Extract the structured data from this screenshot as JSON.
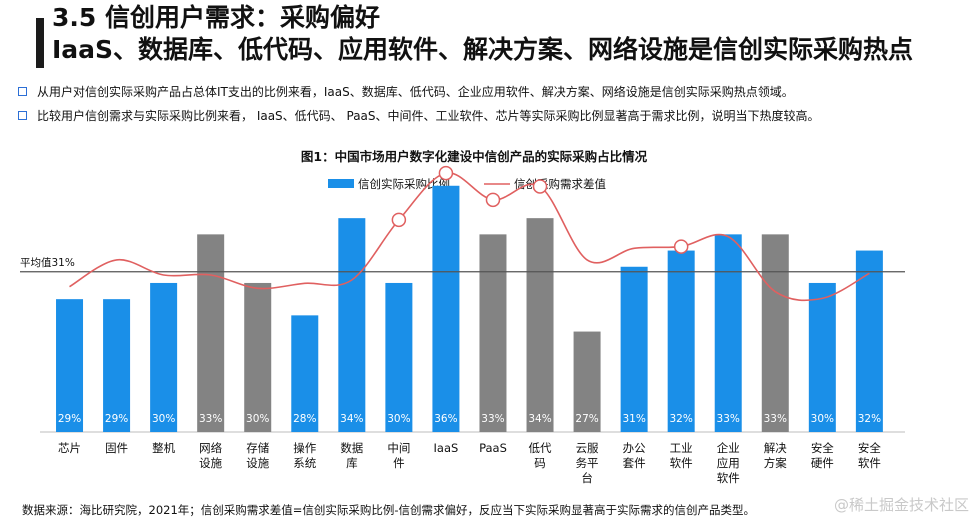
{
  "slide": {
    "section_title": "3.5 信创用户需求：采购偏好",
    "headline": "IaaS、数据库、低代码、应用软件、解决方案、网络设施是信创实际采购热点",
    "bullets": [
      "从用户对信创实际采购产品占总体IT支出的比例来看，IaaS、数据库、低代码、企业应用软件、解决方案、网络设施是信创实际采购热点领域。",
      "比较用户信创需求与实际采购比例来看， IaaS、低代码、 PaaS、中间件、工业软件、芯片等实际采购比例显著高于需求比例，说明当下热度较高。"
    ],
    "footer_note": "数据来源：海比研究院，2021年；信创采购需求差值=信创实际采购比例-信创需求偏好，反应当下实际采购显著高于实际需求的信创产品类型。",
    "watermark": "@稀土掘金技术社区",
    "colors": {
      "bar_highlight": "#1a8fe8",
      "bar_normal": "#838383",
      "line": "#e06060"
    }
  },
  "chart_data": {
    "type": "bar",
    "title": "图1：中国市场用户数字化建设中信创产品的实际采购占比情况",
    "categories": [
      "芯片",
      "固件",
      "整机",
      "网络\n设施",
      "存储\n设施",
      "操作\n系统",
      "数据\n库",
      "中间\n件",
      "IaaS",
      "PaaS",
      "低代\n码",
      "云服\n务平\n台",
      "办公\n套件",
      "工业\n软件",
      "企业\n应用\n软件",
      "解决\n方案",
      "安全\n硬件",
      "安全\n软件"
    ],
    "series": [
      {
        "name": "信创实际采购比例",
        "type": "bar",
        "values": [
          29,
          29,
          30,
          33,
          30,
          28,
          34,
          30,
          36,
          33,
          34,
          27,
          31,
          32,
          33,
          33,
          30,
          32
        ],
        "labels": [
          "29%",
          "29%",
          "30%",
          "33%",
          "30%",
          "28%",
          "34%",
          "30%",
          "36%",
          "33%",
          "34%",
          "27%",
          "31%",
          "32%",
          "33%",
          "33%",
          "30%",
          "32%"
        ],
        "highlight": [
          true,
          true,
          true,
          false,
          false,
          true,
          true,
          true,
          true,
          false,
          false,
          false,
          true,
          true,
          true,
          false,
          true,
          true
        ]
      },
      {
        "name": "信创采购需求差值",
        "type": "line",
        "values": [
          0.2,
          1.8,
          0.9,
          0.9,
          0.1,
          0.4,
          0.6,
          4.2,
          7.0,
          5.4,
          6.2,
          1.8,
          2.5,
          2.6,
          3.2,
          -0.1,
          -0.5,
          1.0
        ],
        "markers": [
          false,
          false,
          false,
          false,
          false,
          false,
          false,
          true,
          true,
          true,
          true,
          false,
          false,
          true,
          false,
          false,
          false,
          false
        ]
      }
    ],
    "reference_line": {
      "label": "平均值31%",
      "value": 31
    },
    "legend_position": "top-center"
  }
}
